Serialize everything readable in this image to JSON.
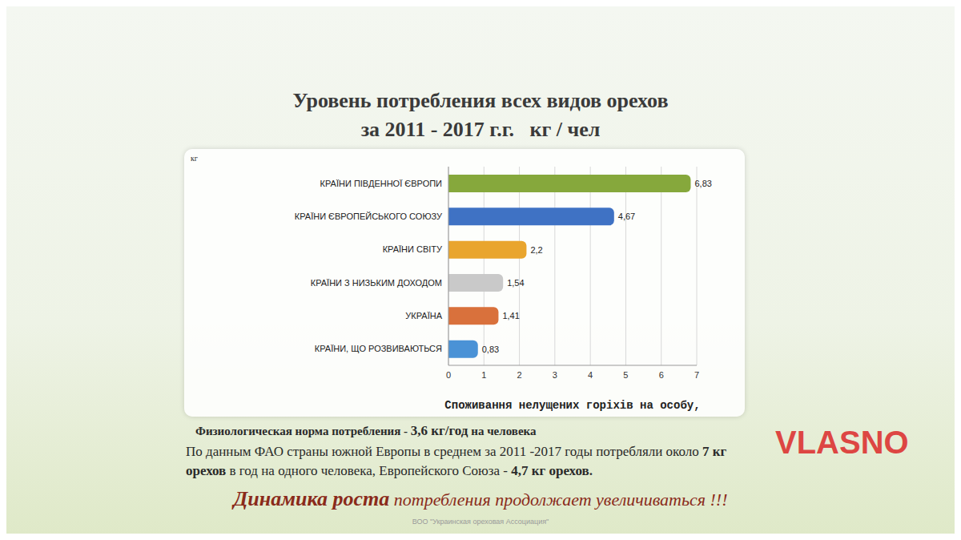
{
  "chart_data": {
    "type": "bar",
    "orientation": "horizontal",
    "title": [
      "Уровень потребления всех видов орехов",
      "за 2011 - 2017 г.г.   кг / чел"
    ],
    "unit_label": "кг",
    "x_label": "Споживання нелущених горіхів на особу,",
    "categories": [
      "КРАЇНИ ПІВДЕННОЇ ЄВРОПИ",
      "КРАЇНИ ЄВРОПЕЙСЬКОГО СОЮЗУ",
      "КРАЇНИ СВІТУ",
      "КРАЇНИ З НИЗЬКИМ ДОХОДОМ",
      "УКРАЇНА",
      "КРАЇНИ, ЩО РОЗВИВАЮТЬСЯ"
    ],
    "values": [
      6.83,
      4.67,
      2.2,
      1.54,
      1.41,
      0.83
    ],
    "value_labels": [
      "6,83",
      "4,67",
      "2,2",
      "1,54",
      "1,41",
      "0,83"
    ],
    "colors": [
      "#86a83c",
      "#3f72c4",
      "#e9a52e",
      "#c9c9c9",
      "#d9713c",
      "#4a92d6"
    ],
    "xlim": [
      0,
      7
    ],
    "xticks": [
      0,
      1,
      2,
      3,
      4,
      5,
      6,
      7
    ],
    "grid": true,
    "data_labels": true,
    "norm": [
      {
        "text": "Физиологическая норма потребления - ",
        "bold": false
      },
      {
        "text": "3,6 кг/год",
        "bold": true
      },
      {
        "text": " на человека",
        "bold": false
      }
    ],
    "paragraph": [
      {
        "text": "По данным ФАО страны южной Европы в среднем за 2011 -2017 годы потребляли около ",
        "bold": false
      },
      {
        "text": "7 кг орехов",
        "bold": true
      },
      {
        "text": " в год на одного человека, Европейского Союза - ",
        "bold": false
      },
      {
        "text": "4,7 кг орехов.",
        "bold": true
      }
    ],
    "slogan": [
      {
        "text": "Динамика роста",
        "bold": true
      },
      {
        "text": " потребления продолжает увеличиваться !!!",
        "bold": false
      }
    ],
    "source": "ВОО \"Украинская ореховая Ассоциация\"",
    "watermark": "VLASNO"
  }
}
